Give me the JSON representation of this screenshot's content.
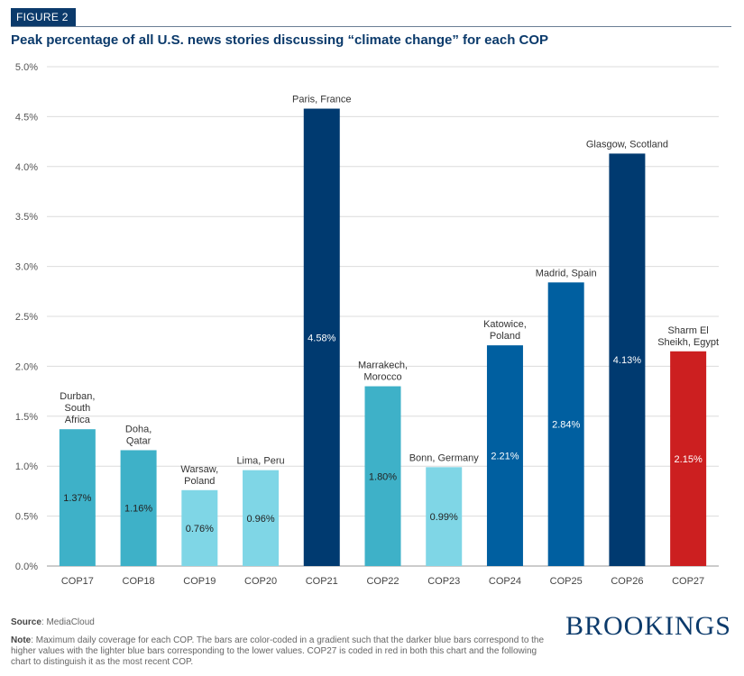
{
  "figure_label": "FIGURE 2",
  "source": {
    "label": "Source",
    "text": ": MediaCloud"
  },
  "note": {
    "label": "Note",
    "text": ": Maximum daily coverage for each COP. The bars are color-coded in a gradient such that the darker blue bars correspond to the higher values with the lighter blue bars corresponding to the lower values. COP27 is coded in red in both this chart and the following chart to distinguish it as the most recent COP."
  },
  "logo": "BROOKINGS",
  "chart_data": {
    "type": "bar",
    "title": "Peak percentage of all U.S. news stories discussing “climate change” for each COP",
    "xlabel": "",
    "ylabel": "",
    "ylim": [
      0,
      5
    ],
    "yticks": [
      "0.0%",
      "0.5%",
      "1.0%",
      "1.5%",
      "2.0%",
      "2.5%",
      "3.0%",
      "3.5%",
      "4.0%",
      "4.5%",
      "5.0%"
    ],
    "grid": true,
    "categories": [
      "COP17",
      "COP18",
      "COP19",
      "COP20",
      "COP21",
      "COP22",
      "COP23",
      "COP24",
      "COP25",
      "COP26",
      "COP27"
    ],
    "values": [
      1.37,
      1.16,
      0.76,
      0.96,
      4.58,
      1.8,
      0.99,
      2.21,
      2.84,
      4.13,
      2.15
    ],
    "value_labels": [
      "1.37%",
      "1.16%",
      "0.76%",
      "0.96%",
      "4.58%",
      "1.80%",
      "0.99%",
      "2.21%",
      "2.84%",
      "4.13%",
      "2.15%"
    ],
    "locations": [
      [
        "Durban,",
        "South",
        "Africa"
      ],
      [
        "Doha,",
        "Qatar"
      ],
      [
        "Warsaw,",
        "Poland"
      ],
      [
        "Lima, Peru"
      ],
      [
        "Paris, France"
      ],
      [
        "Marrakech,",
        "Morocco"
      ],
      [
        "Bonn, Germany"
      ],
      [
        "Katowice,",
        "Poland"
      ],
      [
        "Madrid, Spain"
      ],
      [
        "Glasgow, Scotland"
      ],
      [
        "Sharm El",
        "Sheikh, Egypt"
      ]
    ],
    "colors": [
      "#3eb1c8",
      "#3eb1c8",
      "#7fd6e6",
      "#7fd6e6",
      "#003a70",
      "#3eb1c8",
      "#7fd6e6",
      "#005fa0",
      "#005fa0",
      "#003a70",
      "#cc1f20"
    ],
    "value_label_colors": [
      "#222222",
      "#222222",
      "#222222",
      "#222222",
      "#ffffff",
      "#222222",
      "#222222",
      "#ffffff",
      "#ffffff",
      "#ffffff",
      "#ffffff"
    ]
  }
}
